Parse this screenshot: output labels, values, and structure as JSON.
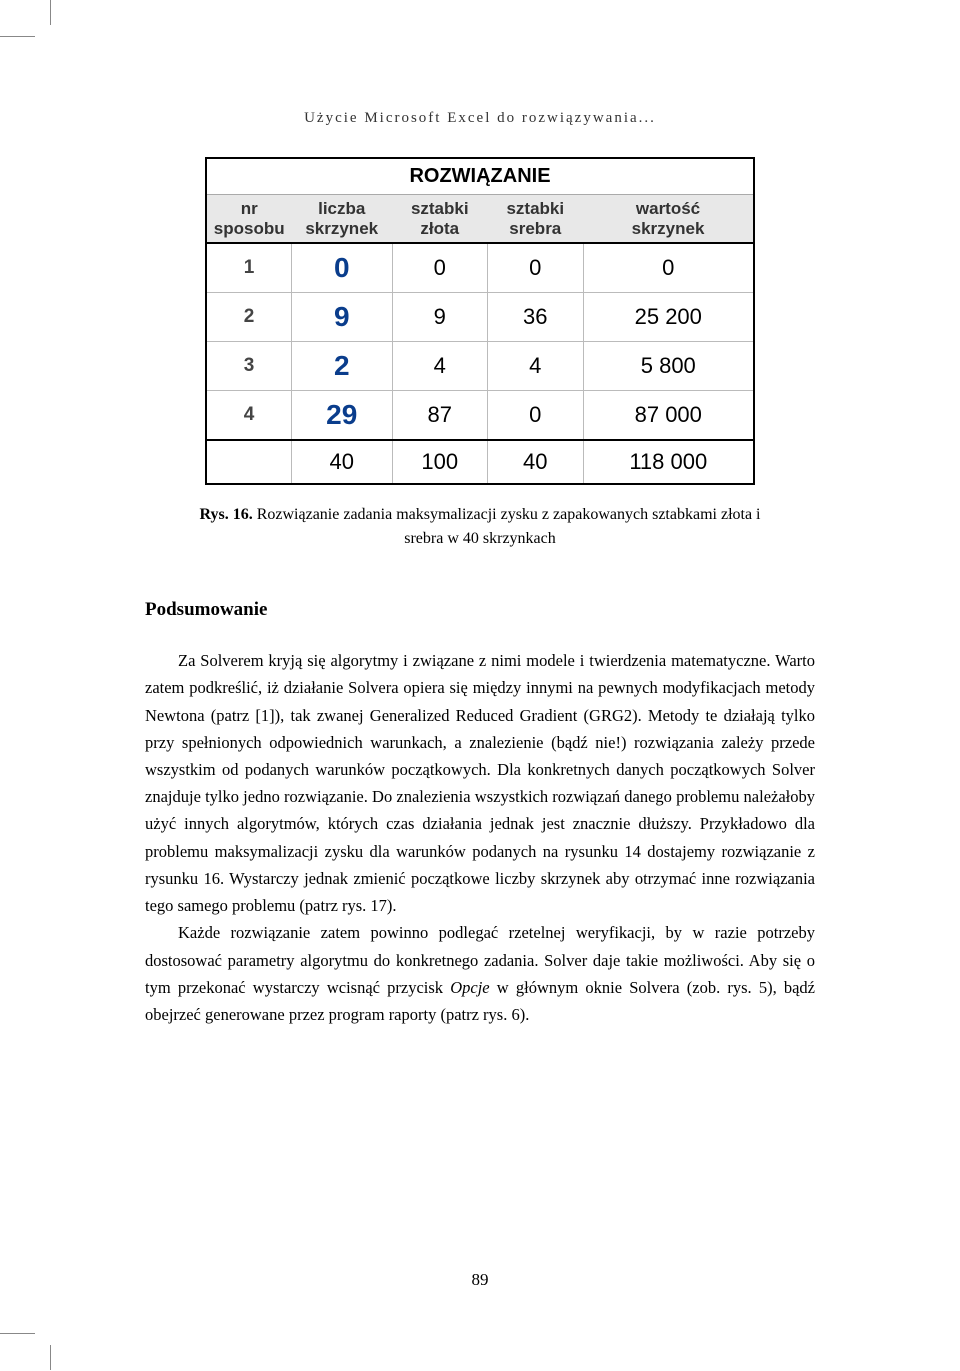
{
  "running_head": "Użycie Microsoft Excel do rozwiązywania...",
  "table": {
    "title": "ROZWIĄZANIE",
    "header_colors": {
      "bg": "#e8e8e8"
    },
    "liczba_color": "#0a3d8c",
    "columns": {
      "nr_line1": "nr",
      "nr_line2": "sposobu",
      "liczba_line1": "liczba",
      "liczba_line2": "skrzynek",
      "zlota_line1": "sztabki",
      "zlota_line2": "złota",
      "srebra_line1": "sztabki",
      "srebra_line2": "srebra",
      "wartosc_line1": "wartość",
      "wartosc_line2": "skrzynek"
    },
    "rows": [
      {
        "nr": "1",
        "liczba": "0",
        "zlota": "0",
        "srebra": "0",
        "wartosc": "0"
      },
      {
        "nr": "2",
        "liczba": "9",
        "zlota": "9",
        "srebra": "36",
        "wartosc": "25 200"
      },
      {
        "nr": "3",
        "liczba": "2",
        "zlota": "4",
        "srebra": "4",
        "wartosc": "5 800"
      },
      {
        "nr": "4",
        "liczba": "29",
        "zlota": "87",
        "srebra": "0",
        "wartosc": "87 000"
      }
    ],
    "total": {
      "nr": "",
      "liczba": "40",
      "zlota": "100",
      "srebra": "40",
      "wartosc": "118 000"
    }
  },
  "caption": {
    "label": "Rys. 16.",
    "text": " Rozwiązanie zadania maksymalizacji zysku z zapakowanych sztabkami złota i srebra w 40 skrzynkach"
  },
  "section_heading": "Podsumowanie",
  "paragraphs": {
    "p1": "Za Solverem kryją się algorytmy i związane z nimi modele i twierdzenia matematyczne. Warto zatem podkreślić, iż działanie Solvera opiera się między innymi na pewnych modyfikacjach metody Newtona (patrz [1]), tak zwanej Generalized Reduced Gradient (GRG2). Metody te działają tylko przy spełnionych odpowiednich warunkach, a znalezienie (bądź nie!) rozwiązania zależy przede wszystkim od podanych warunków początkowych. Dla konkretnych danych początkowych Solver znajduje tylko jedno rozwiązanie. Do znalezienia wszystkich rozwiązań danego problemu należałoby użyć innych algorytmów, których czas działania jednak jest znacznie dłuższy. Przykładowo dla problemu maksymalizacji zysku dla warunków podanych na rysunku 14 dostajemy rozwiązanie z rysunku 16. Wystarczy jednak zmienić początkowe liczby skrzynek aby otrzymać inne rozwiązania tego samego problemu (patrz rys. 17).",
    "p2a": "Każde rozwiązanie zatem powinno podlegać rzetelnej weryfikacji, by w razie potrzeby dostosować parametry algorytmu do konkretnego zadania. Solver daje takie możliwości. Aby się o tym przekonać wystarczy wcisnąć przycisk ",
    "p2_italic": "Opcje",
    "p2b": " w głównym oknie Solvera (zob. rys. 5), bądź obejrzeć generowane przez program raporty (patrz rys. 6)."
  },
  "page_number": "89"
}
